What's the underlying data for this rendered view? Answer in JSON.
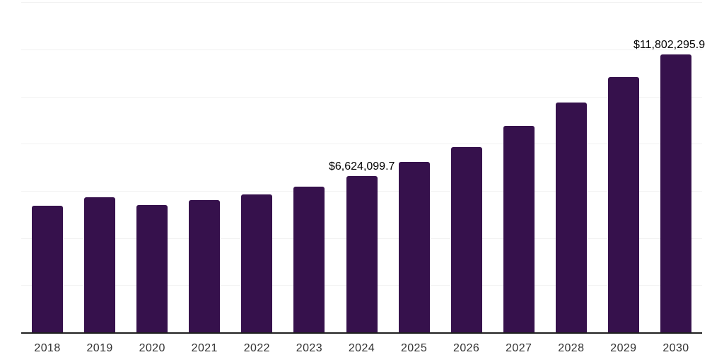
{
  "page": {
    "background": "#ffffff"
  },
  "chart_data": {
    "type": "bar",
    "title": "",
    "xlabel": "",
    "ylabel": "",
    "categories": [
      "2018",
      "2019",
      "2020",
      "2021",
      "2022",
      "2023",
      "2024",
      "2025",
      "2026",
      "2027",
      "2028",
      "2029",
      "2030"
    ],
    "values": [
      5360000,
      5720000,
      5390000,
      5620000,
      5840000,
      6170000,
      6624099.7,
      7220000,
      7850000,
      8750000,
      9740000,
      10820000,
      11802295.9
    ],
    "point_labels": [
      "",
      "",
      "",
      "",
      "",
      "",
      "$6,624,099.7",
      "",
      "",
      "",
      "",
      "",
      "$11,802,295.9"
    ],
    "ylim": [
      0,
      14000000
    ],
    "gridline_step": 2000000,
    "grid": true,
    "legend": "none",
    "y_axis_labels_visible": false,
    "colors": {
      "bar": "#36114C",
      "grid": "#f2f2f2",
      "axis": "#1f1f1f",
      "tick_label": "#333333",
      "point_label": "#000000"
    }
  }
}
